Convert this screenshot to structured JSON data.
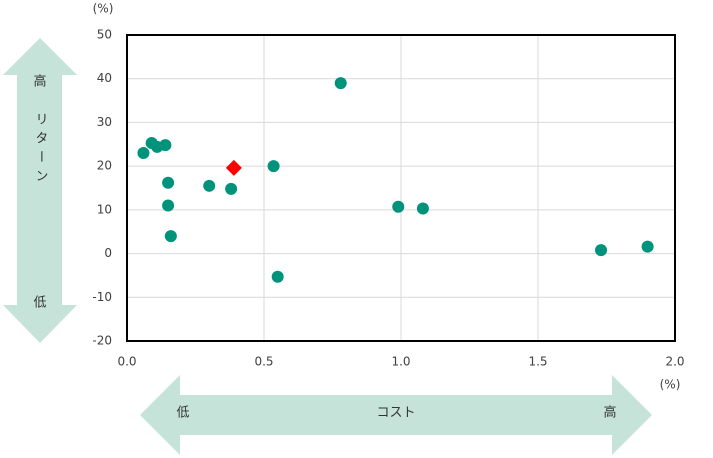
{
  "chart_data": {
    "type": "scatter",
    "y_unit": "(%)",
    "x_unit": "(%)",
    "ylabel": "リターン",
    "y_high": "高",
    "y_low": "低",
    "xlabel": "コスト",
    "x_low": "低",
    "x_high": "高",
    "xlim": [
      0,
      2
    ],
    "xticks": [
      {
        "value": 0,
        "label": "0.0"
      },
      0.5,
      {
        "value": 1,
        "label": "1.0"
      },
      1.5,
      {
        "value": 2,
        "label": "2.0"
      }
    ],
    "ylim": [
      -20,
      50
    ],
    "yticks": [
      50,
      40,
      30,
      20,
      10,
      0,
      -10,
      -20
    ],
    "grid": true,
    "series": [
      {
        "color": "#00937c",
        "marker": "circle",
        "x": [
          0.06,
          0.09,
          0.11,
          0.14,
          0.15,
          0.15,
          0.16,
          0.3,
          0.38,
          0.535,
          0.55,
          0.78,
          0.99,
          1.08,
          1.73,
          1.9
        ],
        "values": [
          23.0,
          25.3,
          24.4,
          24.8,
          16.2,
          11.0,
          4.0,
          15.5,
          14.8,
          20.0,
          -5.3,
          39.0,
          10.7,
          10.3,
          0.8,
          1.6
        ]
      },
      {
        "color": "#ff0000",
        "marker": "diamond",
        "x": [
          0.39
        ],
        "values": [
          19.6
        ]
      }
    ]
  }
}
